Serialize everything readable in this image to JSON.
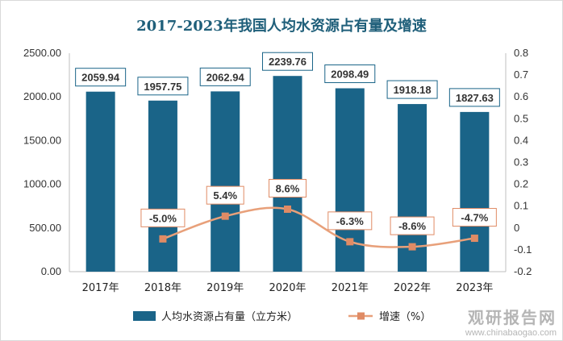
{
  "chart_data": {
    "type": "bar",
    "title": "2017-2023年我国人均水资源占有量及增速",
    "categories": [
      "2017年",
      "2018年",
      "2019年",
      "2020年",
      "2021年",
      "2022年",
      "2023年"
    ],
    "series": [
      {
        "name": "人均水资源占有量（立方米）",
        "type": "bar",
        "axis": "left",
        "values": [
          2059.94,
          1957.75,
          2062.94,
          2239.76,
          2098.49,
          1918.18,
          1827.63
        ],
        "labels": [
          "2059.94",
          "1957.75",
          "2062.94",
          "2239.76",
          "2098.49",
          "1918.18",
          "1827.63"
        ]
      },
      {
        "name": "增速（%）",
        "type": "line",
        "axis": "right",
        "values": [
          null,
          -0.05,
          0.054,
          0.086,
          -0.063,
          -0.086,
          -0.047
        ],
        "labels": [
          "",
          "-5.0%",
          "5.4%",
          "8.6%",
          "-6.3%",
          "-8.6%",
          "-4.7%"
        ]
      }
    ],
    "y_left": {
      "range": [
        0,
        2500
      ],
      "ticks": [
        "0.00",
        "500.00",
        "1000.00",
        "1500.00",
        "2000.00",
        "2500.00"
      ]
    },
    "y_right": {
      "range": [
        -0.2,
        0.8
      ],
      "ticks": [
        "-0.2",
        "-0.1",
        "0",
        "0.1",
        "0.2",
        "0.3",
        "0.4",
        "0.5",
        "0.6",
        "0.7",
        "0.8"
      ]
    },
    "grid": false,
    "legend_position": "bottom",
    "colors": {
      "bar": "#1a6488",
      "line": "#e8a07a",
      "marker": "#e08b65",
      "title": "#1f5f7a"
    }
  },
  "watermark": {
    "line1": "观研报告网",
    "line2": "www.chinabaogao.com"
  }
}
